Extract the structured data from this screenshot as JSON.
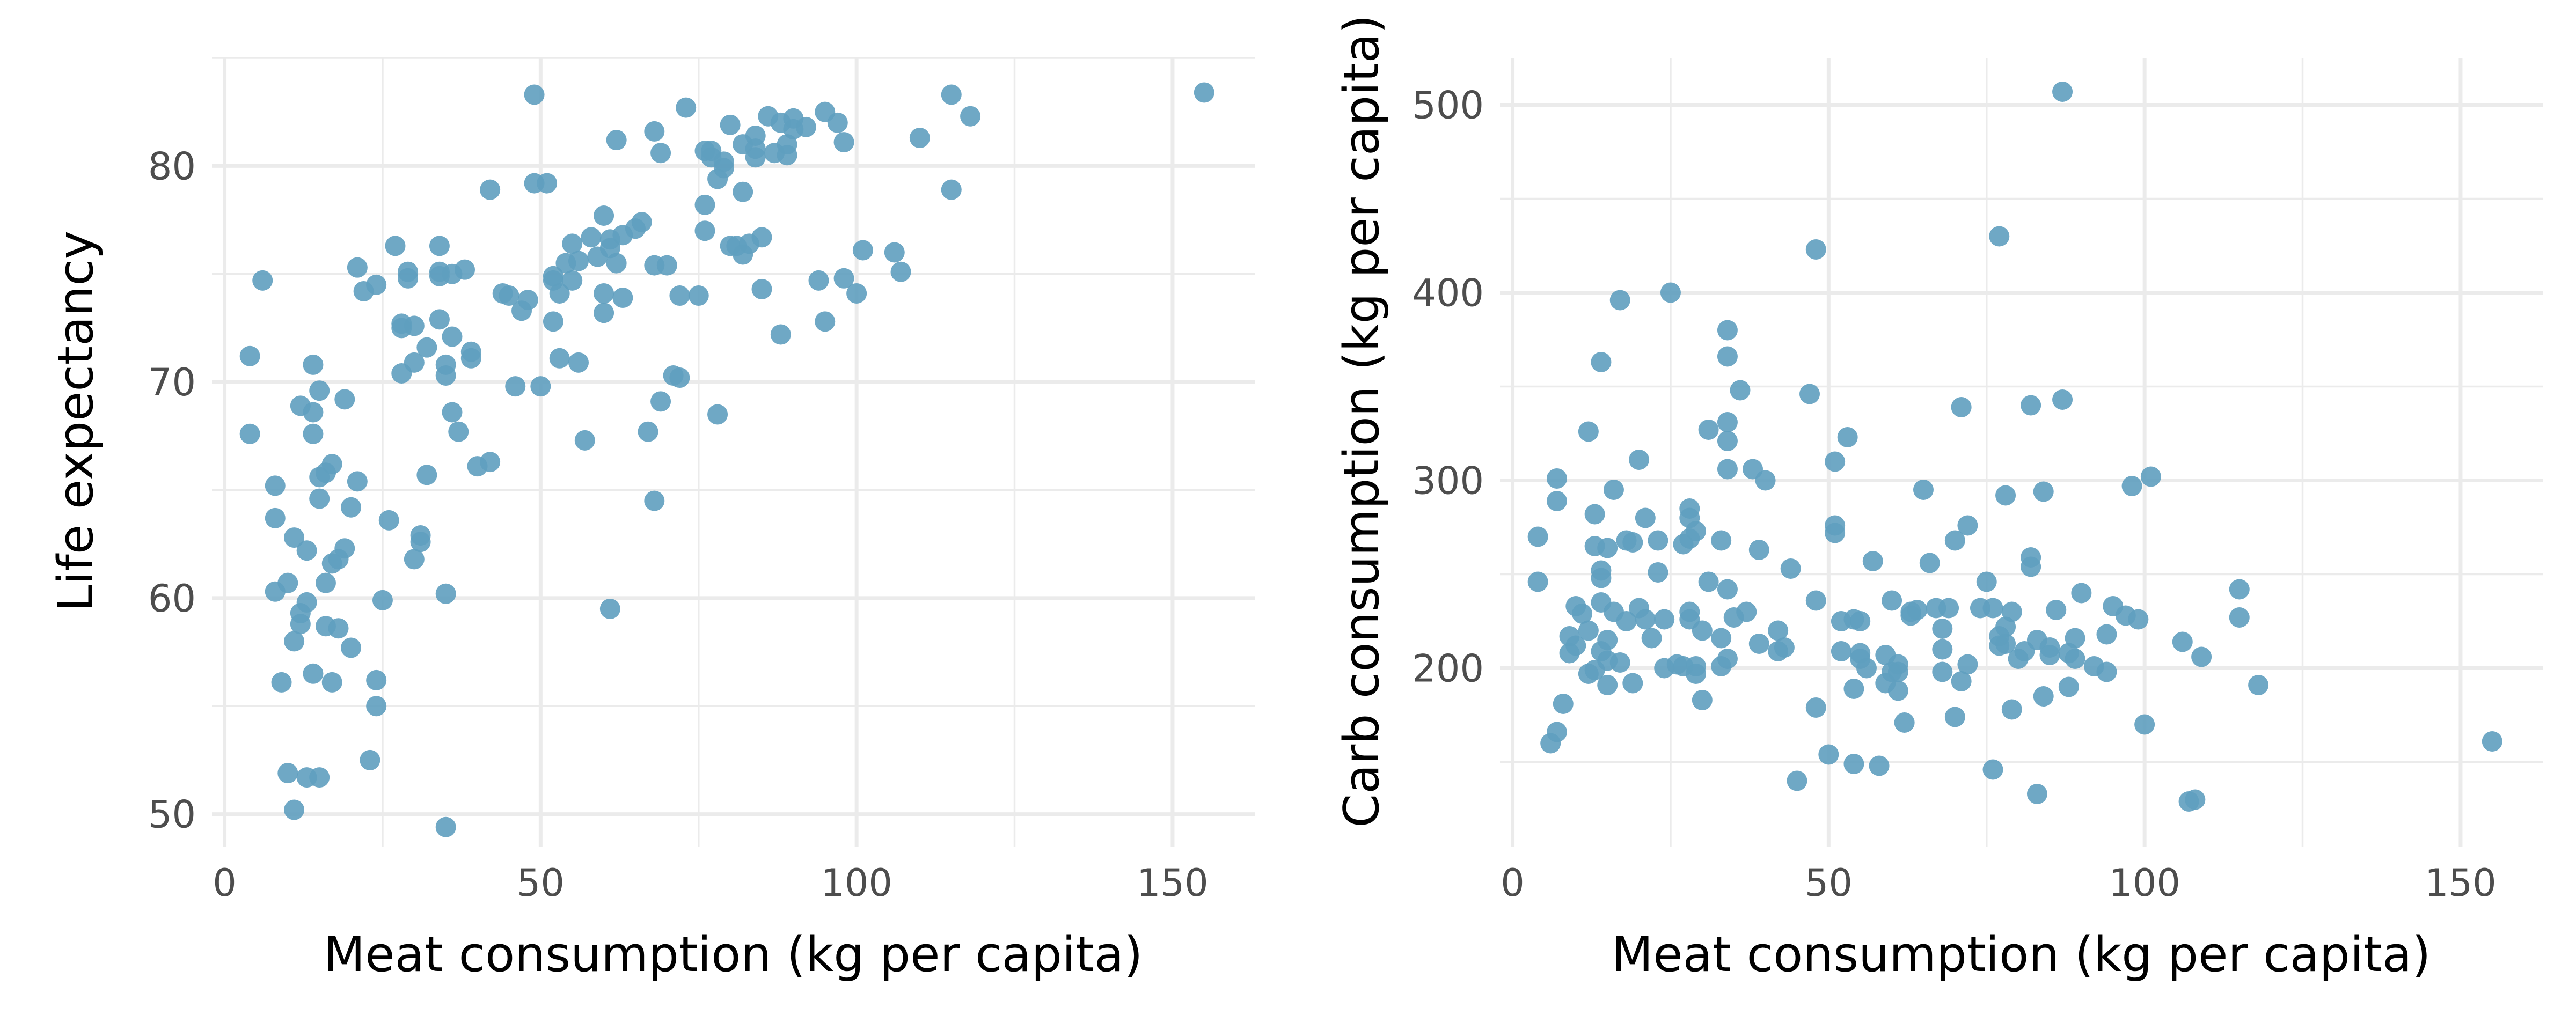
{
  "chart_data": [
    {
      "type": "scatter",
      "xlabel": "Meat consumption (kg per capita)",
      "ylabel": "Life expectancy",
      "xlim": [
        -2,
        163
      ],
      "ylim": [
        48.5,
        85
      ],
      "x_ticks": [
        0,
        50,
        100,
        150
      ],
      "y_ticks": [
        50,
        60,
        70,
        80
      ],
      "grid": true,
      "point_color": "#5f9ebf",
      "points": [
        [
          4,
          71.2
        ],
        [
          4,
          67.6
        ],
        [
          6,
          74.7
        ],
        [
          8,
          65.2
        ],
        [
          8,
          63.7
        ],
        [
          8,
          60.3
        ],
        [
          9,
          56.1
        ],
        [
          10,
          51.9
        ],
        [
          10,
          60.7
        ],
        [
          11,
          62.8
        ],
        [
          11,
          58
        ],
        [
          11,
          50.2
        ],
        [
          12,
          68.9
        ],
        [
          12,
          59.3
        ],
        [
          12,
          58.8
        ],
        [
          13,
          62.2
        ],
        [
          13,
          51.7
        ],
        [
          13,
          59.8
        ],
        [
          14,
          56.5
        ],
        [
          14,
          67.6
        ],
        [
          14,
          68.6
        ],
        [
          14,
          70.8
        ],
        [
          15,
          51.7
        ],
        [
          15,
          64.6
        ],
        [
          15,
          65.6
        ],
        [
          15,
          69.6
        ],
        [
          16,
          58.7
        ],
        [
          16,
          60.7
        ],
        [
          16,
          65.8
        ],
        [
          17,
          56.1
        ],
        [
          17,
          66.2
        ],
        [
          17,
          61.6
        ],
        [
          18,
          58.6
        ],
        [
          18,
          61.8
        ],
        [
          19,
          62.3
        ],
        [
          19,
          69.2
        ],
        [
          20,
          57.7
        ],
        [
          20,
          64.2
        ],
        [
          21,
          65.4
        ],
        [
          21,
          75.3
        ],
        [
          22,
          74.2
        ],
        [
          23,
          52.5
        ],
        [
          24,
          74.5
        ],
        [
          24,
          56.2
        ],
        [
          24,
          55
        ],
        [
          25,
          59.9
        ],
        [
          26,
          63.6
        ],
        [
          27,
          76.3
        ],
        [
          28,
          72.7
        ],
        [
          28,
          70.4
        ],
        [
          28,
          72.5
        ],
        [
          29,
          75.1
        ],
        [
          29,
          74.8
        ],
        [
          30,
          61.8
        ],
        [
          30,
          72.6
        ],
        [
          30,
          70.9
        ],
        [
          31,
          62.9
        ],
        [
          31,
          62.6
        ],
        [
          32,
          71.6
        ],
        [
          32,
          65.7
        ],
        [
          34,
          76.3
        ],
        [
          34,
          72.9
        ],
        [
          34,
          75.1
        ],
        [
          34,
          74.9
        ],
        [
          35,
          70.8
        ],
        [
          35,
          60.2
        ],
        [
          35,
          70.3
        ],
        [
          35,
          49.4
        ],
        [
          36,
          72.1
        ],
        [
          36,
          75
        ],
        [
          36,
          68.6
        ],
        [
          37,
          67.7
        ],
        [
          38,
          75.2
        ],
        [
          39,
          71.1
        ],
        [
          39,
          71.4
        ],
        [
          40,
          66.1
        ],
        [
          42,
          78.9
        ],
        [
          42,
          66.3
        ],
        [
          44,
          74.1
        ],
        [
          45,
          74
        ],
        [
          46,
          69.8
        ],
        [
          47,
          73.3
        ],
        [
          48,
          73.8
        ],
        [
          49,
          83.3
        ],
        [
          49,
          79.2
        ],
        [
          50,
          69.8
        ],
        [
          51,
          79.2
        ],
        [
          52,
          74.7
        ],
        [
          52,
          74.9
        ],
        [
          52,
          72.8
        ],
        [
          53,
          71.1
        ],
        [
          53,
          74.1
        ],
        [
          54,
          75.5
        ],
        [
          55,
          76.4
        ],
        [
          55,
          74.7
        ],
        [
          56,
          75.6
        ],
        [
          56,
          70.9
        ],
        [
          57,
          67.3
        ],
        [
          58,
          76.7
        ],
        [
          59,
          75.8
        ],
        [
          60,
          73.2
        ],
        [
          60,
          74.1
        ],
        [
          60,
          77.7
        ],
        [
          61,
          76.2
        ],
        [
          61,
          76.6
        ],
        [
          61,
          59.5
        ],
        [
          62,
          75.5
        ],
        [
          62,
          81.2
        ],
        [
          63,
          73.9
        ],
        [
          63,
          76.8
        ],
        [
          65,
          77.1
        ],
        [
          66,
          77.4
        ],
        [
          67,
          67.7
        ],
        [
          68,
          64.5
        ],
        [
          68,
          75.4
        ],
        [
          68,
          81.6
        ],
        [
          69,
          69.1
        ],
        [
          69,
          80.6
        ],
        [
          70,
          75.4
        ],
        [
          71,
          70.3
        ],
        [
          72,
          70.2
        ],
        [
          72,
          74
        ],
        [
          73,
          82.7
        ],
        [
          75,
          74
        ],
        [
          76,
          80.7
        ],
        [
          76,
          77
        ],
        [
          76,
          78.2
        ],
        [
          77,
          80.4
        ],
        [
          77,
          80.7
        ],
        [
          78,
          68.5
        ],
        [
          78,
          79.4
        ],
        [
          79,
          79.9
        ],
        [
          79,
          80.2
        ],
        [
          80,
          81.9
        ],
        [
          80,
          76.3
        ],
        [
          81,
          76.3
        ],
        [
          82,
          78.8
        ],
        [
          82,
          81
        ],
        [
          82,
          75.9
        ],
        [
          83,
          76.4
        ],
        [
          84,
          80.8
        ],
        [
          84,
          80.4
        ],
        [
          84,
          81.4
        ],
        [
          85,
          74.3
        ],
        [
          85,
          76.7
        ],
        [
          86,
          82.3
        ],
        [
          87,
          80.6
        ],
        [
          88,
          82
        ],
        [
          88,
          72.2
        ],
        [
          89,
          80.5
        ],
        [
          89,
          81
        ],
        [
          90,
          81.7
        ],
        [
          90,
          82.2
        ],
        [
          92,
          81.8
        ],
        [
          94,
          74.7
        ],
        [
          95,
          82.5
        ],
        [
          95,
          72.8
        ],
        [
          97,
          82
        ],
        [
          98,
          81.1
        ],
        [
          98,
          74.8
        ],
        [
          100,
          74.1
        ],
        [
          101,
          76.1
        ],
        [
          106,
          76
        ],
        [
          107,
          75.1
        ],
        [
          110,
          81.3
        ],
        [
          115,
          83.3
        ],
        [
          115,
          78.9
        ],
        [
          118,
          82.3
        ],
        [
          155,
          83.4
        ]
      ]
    },
    {
      "type": "scatter",
      "xlabel": "Meat consumption (kg per capita)",
      "ylabel": "Carb consumption (kg per capita)",
      "xlim": [
        -2,
        163
      ],
      "ylim": [
        105,
        525
      ],
      "x_ticks": [
        0,
        50,
        100,
        150
      ],
      "y_ticks": [
        200,
        300,
        400,
        500
      ],
      "grid": true,
      "point_color": "#5f9ebf",
      "points": [
        [
          4,
          270
        ],
        [
          4,
          246
        ],
        [
          6,
          160
        ],
        [
          7,
          301
        ],
        [
          7,
          289
        ],
        [
          7,
          166
        ],
        [
          8,
          181
        ],
        [
          9,
          217
        ],
        [
          9,
          208
        ],
        [
          10,
          212
        ],
        [
          10,
          233
        ],
        [
          11,
          229
        ],
        [
          12,
          326
        ],
        [
          12,
          197
        ],
        [
          12,
          220
        ],
        [
          13,
          265
        ],
        [
          13,
          282
        ],
        [
          13,
          199
        ],
        [
          14,
          252
        ],
        [
          14,
          248
        ],
        [
          14,
          363
        ],
        [
          14,
          235
        ],
        [
          14,
          209
        ],
        [
          15,
          264
        ],
        [
          15,
          215
        ],
        [
          15,
          204
        ],
        [
          15,
          191
        ],
        [
          16,
          295
        ],
        [
          16,
          230
        ],
        [
          17,
          396
        ],
        [
          17,
          203
        ],
        [
          18,
          268
        ],
        [
          18,
          225
        ],
        [
          19,
          267
        ],
        [
          19,
          192
        ],
        [
          20,
          232
        ],
        [
          20,
          311
        ],
        [
          21,
          280
        ],
        [
          21,
          226
        ],
        [
          22,
          216
        ],
        [
          23,
          251
        ],
        [
          23,
          268
        ],
        [
          24,
          200
        ],
        [
          24,
          226
        ],
        [
          25,
          400
        ],
        [
          26,
          202
        ],
        [
          27,
          266
        ],
        [
          27,
          201
        ],
        [
          28,
          269
        ],
        [
          28,
          226
        ],
        [
          28,
          285
        ],
        [
          28,
          230
        ],
        [
          28,
          280
        ],
        [
          29,
          197
        ],
        [
          29,
          201
        ],
        [
          29,
          273
        ],
        [
          30,
          183
        ],
        [
          30,
          220
        ],
        [
          31,
          327
        ],
        [
          31,
          246
        ],
        [
          33,
          268
        ],
        [
          33,
          201
        ],
        [
          33,
          216
        ],
        [
          34,
          242
        ],
        [
          34,
          205
        ],
        [
          34,
          366
        ],
        [
          34,
          380
        ],
        [
          34,
          331
        ],
        [
          34,
          321
        ],
        [
          34,
          306
        ],
        [
          35,
          227
        ],
        [
          36,
          348
        ],
        [
          37,
          230
        ],
        [
          38,
          306
        ],
        [
          39,
          213
        ],
        [
          39,
          263
        ],
        [
          40,
          300
        ],
        [
          42,
          209
        ],
        [
          42,
          220
        ],
        [
          43,
          211
        ],
        [
          44,
          253
        ],
        [
          45,
          140
        ],
        [
          47,
          346
        ],
        [
          48,
          423
        ],
        [
          48,
          236
        ],
        [
          48,
          179
        ],
        [
          50,
          154
        ],
        [
          51,
          272
        ],
        [
          51,
          276
        ],
        [
          51,
          310
        ],
        [
          52,
          209
        ],
        [
          52,
          225
        ],
        [
          53,
          323
        ],
        [
          54,
          189
        ],
        [
          54,
          149
        ],
        [
          54,
          226
        ],
        [
          55,
          208
        ],
        [
          55,
          205
        ],
        [
          55,
          225
        ],
        [
          56,
          200
        ],
        [
          57,
          257
        ],
        [
          58,
          148
        ],
        [
          59,
          207
        ],
        [
          59,
          192
        ],
        [
          60,
          236
        ],
        [
          60,
          198
        ],
        [
          61,
          198
        ],
        [
          61,
          188
        ],
        [
          61,
          202
        ],
        [
          62,
          171
        ],
        [
          63,
          228
        ],
        [
          63,
          230
        ],
        [
          64,
          231
        ],
        [
          65,
          295
        ],
        [
          66,
          256
        ],
        [
          67,
          232
        ],
        [
          68,
          198
        ],
        [
          68,
          221
        ],
        [
          68,
          210
        ],
        [
          69,
          232
        ],
        [
          70,
          268
        ],
        [
          70,
          174
        ],
        [
          71,
          339
        ],
        [
          71,
          193
        ],
        [
          72,
          276
        ],
        [
          72,
          202
        ],
        [
          74,
          232
        ],
        [
          75,
          246
        ],
        [
          76,
          146
        ],
        [
          76,
          232
        ],
        [
          77,
          430
        ],
        [
          77,
          212
        ],
        [
          77,
          217
        ],
        [
          78,
          292
        ],
        [
          78,
          213
        ],
        [
          78,
          222
        ],
        [
          79,
          178
        ],
        [
          79,
          230
        ],
        [
          80,
          205
        ],
        [
          81,
          209
        ],
        [
          82,
          340
        ],
        [
          82,
          259
        ],
        [
          82,
          254
        ],
        [
          83,
          133
        ],
        [
          83,
          215
        ],
        [
          84,
          185
        ],
        [
          84,
          294
        ],
        [
          85,
          211
        ],
        [
          85,
          207
        ],
        [
          86,
          231
        ],
        [
          87,
          507
        ],
        [
          87,
          343
        ],
        [
          88,
          208
        ],
        [
          88,
          190
        ],
        [
          89,
          216
        ],
        [
          89,
          205
        ],
        [
          90,
          240
        ],
        [
          92,
          201
        ],
        [
          94,
          218
        ],
        [
          94,
          198
        ],
        [
          95,
          233
        ],
        [
          97,
          228
        ],
        [
          98,
          297
        ],
        [
          99,
          226
        ],
        [
          100,
          170
        ],
        [
          101,
          302
        ],
        [
          106,
          214
        ],
        [
          107,
          129
        ],
        [
          108,
          130
        ],
        [
          109,
          206
        ],
        [
          115,
          242
        ],
        [
          115,
          227
        ],
        [
          118,
          191
        ],
        [
          155,
          161
        ]
      ]
    }
  ]
}
